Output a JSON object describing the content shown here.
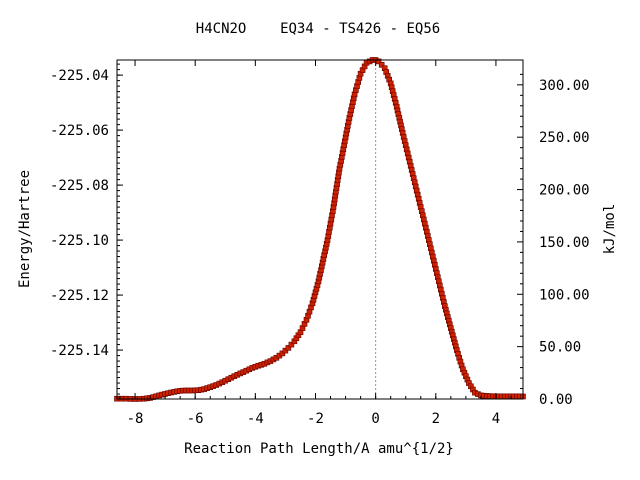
{
  "chart_data": {
    "type": "line",
    "title": "H4CN2O    EQ34 - TS426 - EQ56",
    "xlabel": "Reaction Path Length/A amu^{1/2}",
    "ylabel": "Energy/Hartree",
    "y2label": "kJ/mol",
    "xlim": [
      -8.6,
      4.9
    ],
    "ylim": [
      -225.1578,
      -225.0345
    ],
    "x_ticks": [
      -8,
      -6,
      -4,
      -2,
      0,
      2,
      4
    ],
    "x_tick_labels": [
      "-8",
      "-6",
      "-4",
      "-2",
      "0",
      "2",
      "4"
    ],
    "y_ticks": [
      -225.14,
      -225.12,
      -225.1,
      -225.08,
      -225.06,
      -225.04
    ],
    "y_tick_labels": [
      "-225.14",
      "-225.12",
      "-225.10",
      "-225.08",
      "-225.06",
      "-225.04"
    ],
    "y2_ticks": [
      0,
      50,
      100,
      150,
      200,
      250,
      300
    ],
    "y2_tick_labels": [
      "0.00",
      "50.00",
      "100.00",
      "150.00",
      "200.00",
      "250.00",
      "300.00"
    ],
    "y2_base_hartree": -225.1578,
    "hartree_to_kjmol": 2625.5,
    "ts_x": 0,
    "line_color": "#00aa00",
    "marker_color": "#cc2200",
    "marker_edge": "#660000",
    "vline_color": "#999999",
    "series": [
      {
        "x": [
          -8.6,
          -8.3,
          -8.0,
          -7.7,
          -7.5,
          -7.3,
          -7.1,
          -6.9,
          -6.7,
          -6.5,
          -6.3,
          -6.1,
          -5.9,
          -5.7,
          -5.5,
          -5.3,
          -5.1,
          -4.9,
          -4.7,
          -4.5,
          -4.3,
          -4.1,
          -3.9,
          -3.7,
          -3.5,
          -3.3,
          -3.1,
          -2.9,
          -2.7,
          -2.5,
          -2.3,
          -2.1,
          -1.9,
          -1.6,
          -1.4,
          -1.2,
          -0.9,
          -0.7,
          -0.5,
          -0.3,
          -0.1,
          0.0,
          0.1,
          0.3,
          0.5,
          0.7,
          0.9,
          1.1,
          1.3,
          1.5,
          1.7,
          1.9,
          2.1,
          2.3,
          2.5,
          2.7,
          2.9,
          3.1,
          3.3,
          3.5,
          3.7,
          3.9,
          4.1,
          4.3,
          4.5,
          4.7,
          4.9
        ],
        "y": [
          -225.1577,
          -225.1577,
          -225.1578,
          -225.1577,
          -225.1574,
          -225.1568,
          -225.1562,
          -225.1557,
          -225.1552,
          -225.1548,
          -225.1547,
          -225.1547,
          -225.1546,
          -225.1542,
          -225.1535,
          -225.1527,
          -225.1517,
          -225.1506,
          -225.1495,
          -225.1485,
          -225.1475,
          -225.1465,
          -225.1457,
          -225.145,
          -225.144,
          -225.1428,
          -225.1412,
          -225.1392,
          -225.1368,
          -225.1335,
          -225.129,
          -225.123,
          -225.115,
          -225.1,
          -225.088,
          -225.074,
          -225.057,
          -225.047,
          -225.0395,
          -225.0355,
          -225.0345,
          -225.0345,
          -225.035,
          -225.0375,
          -225.043,
          -225.0515,
          -225.061,
          -225.07,
          -225.079,
          -225.088,
          -225.097,
          -225.106,
          -225.115,
          -225.124,
          -225.132,
          -225.14,
          -225.147,
          -225.152,
          -225.1555,
          -225.1565,
          -225.1567,
          -225.1568,
          -225.1568,
          -225.1568,
          -225.1568,
          -225.1568,
          -225.1569
        ]
      }
    ]
  }
}
